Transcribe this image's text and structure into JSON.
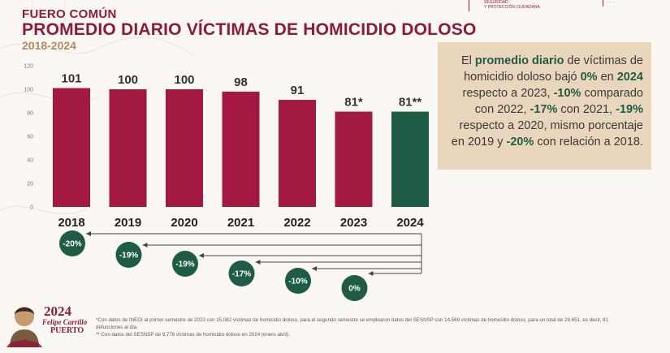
{
  "header": {
    "kicker": "FUERO COMÚN",
    "title": "PROMEDIO DIARIO VÍCTIMAS DE HOMICIDIO DOLOSO",
    "period": "2018-2024"
  },
  "summary": {
    "p1": "El ",
    "b1": "promedio diario",
    "p2": " de víctimas de homicidio doloso bajó ",
    "b2": "0%",
    "p3": " en ",
    "b3": "2024",
    "p4": " respecto a 2023, ",
    "b4": "-10%",
    "p5": " comparado con 2022, ",
    "b5": "-17%",
    "p6": " con 2021, ",
    "b6": "-19%",
    "p7": " respecto a 2020, mismo porcentaje en 2019 y ",
    "b7": "-20%",
    "p8": " con relación a 2018."
  },
  "footnotes": {
    "note1": "*Con datos de INEGI al primer semestre de 2023 con 15,082 víctimas de homicidio doloso, para el segundo semestre se emplearon datos del SESNSP con 14,569 víctimas de homicidio doloso, para un total de 29,651, es decir, 81 defunciones al día.",
    "note2": "** Con datos del SESNSP de 9,776 víctimas de homicidio doloso en 2024 (enero abril)."
  },
  "brand": {
    "year": "2024",
    "name": "Felipe Carrillo",
    "city": "PUERTO"
  },
  "colors": {
    "bar": "#a3193f",
    "highlight_bar": "#1f5c45",
    "title": "#8c1b3a",
    "badge": "#1f5c45",
    "summary_bg": "#ead6bd"
  },
  "chart_data": {
    "type": "bar",
    "categories": [
      "2018",
      "2019",
      "2020",
      "2021",
      "2022",
      "2023",
      "2024"
    ],
    "values": [
      101,
      100,
      100,
      98,
      91,
      81,
      81
    ],
    "value_labels": [
      "101",
      "100",
      "100",
      "98",
      "91",
      "81*",
      "81**"
    ],
    "highlight_index": 6,
    "ylim": [
      0,
      120
    ],
    "yticks": [
      0,
      20,
      40,
      60,
      80,
      100,
      120
    ],
    "grid": false,
    "comparisons": [
      {
        "year": "2018",
        "label": "-20%"
      },
      {
        "year": "2019",
        "label": "-19%"
      },
      {
        "year": "2020",
        "label": "-19%"
      },
      {
        "year": "2021",
        "label": "-17%"
      },
      {
        "year": "2022",
        "label": "-10%"
      },
      {
        "year": "2023",
        "label": "0%"
      }
    ]
  }
}
